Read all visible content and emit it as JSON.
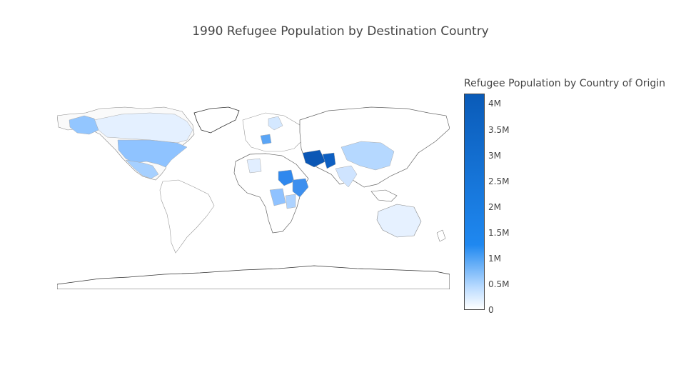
{
  "title": "1990 Refugee Population by Destination Country",
  "colorbar": {
    "title": "Refugee Population by Country of Origin",
    "ticks": [
      {
        "label": "4M",
        "value": 4000000
      },
      {
        "label": "3.5M",
        "value": 3500000
      },
      {
        "label": "3M",
        "value": 3000000
      },
      {
        "label": "2.5M",
        "value": 2500000
      },
      {
        "label": "2M",
        "value": 2000000
      },
      {
        "label": "1.5M",
        "value": 1500000
      },
      {
        "label": "1M",
        "value": 1000000
      },
      {
        "label": "0.5M",
        "value": 500000
      },
      {
        "label": "0",
        "value": 0
      }
    ],
    "max": 4200000,
    "colorscale": [
      "#ffffff",
      "#bcdcff",
      "#1f88f0",
      "#0a5bb8"
    ]
  },
  "chart_data": {
    "type": "choropleth",
    "projection": "equirectangular",
    "value_units": "refugees",
    "countries": [
      {
        "name": "Iran",
        "value": 4200000
      },
      {
        "name": "Pakistan",
        "value": 3300000
      },
      {
        "name": "Sudan",
        "value": 1100000
      },
      {
        "name": "Somalia",
        "value": 1000000
      },
      {
        "name": "Germany",
        "value": 950000
      },
      {
        "name": "United States",
        "value": 600000
      },
      {
        "name": "Zaire",
        "value": 550000
      },
      {
        "name": "China",
        "value": 280000
      },
      {
        "name": "India",
        "value": 300000
      },
      {
        "name": "Mexico",
        "value": 400000
      },
      {
        "name": "Canada",
        "value": 200000
      },
      {
        "name": "Australia",
        "value": 120000
      },
      {
        "name": "Sweden",
        "value": 200000
      },
      {
        "name": "Ethiopia",
        "value": 800000
      },
      {
        "name": "Tanzania",
        "value": 300000
      },
      {
        "name": "Algeria",
        "value": 150000
      }
    ]
  }
}
